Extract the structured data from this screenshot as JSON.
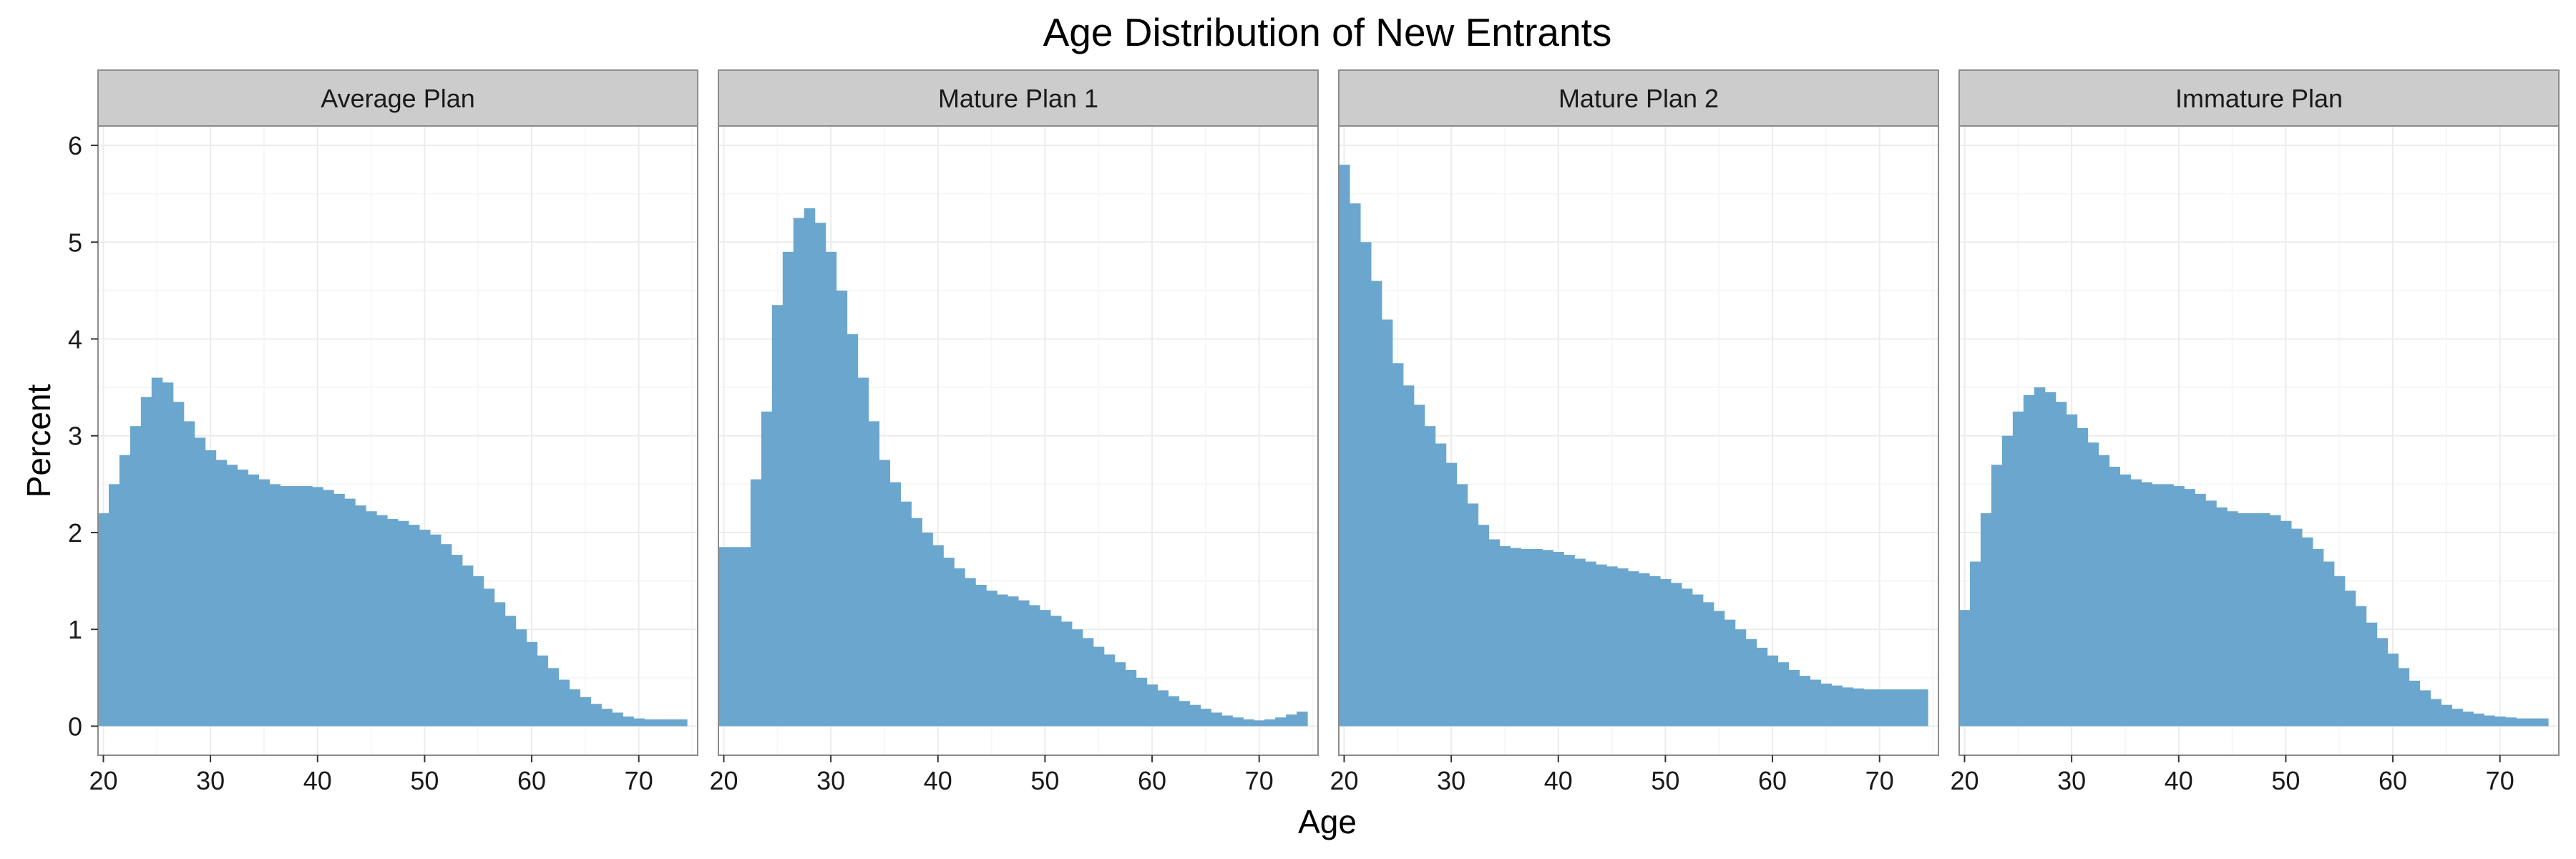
{
  "chart_data": {
    "type": "bar",
    "title": "Age Distribution of New Entrants",
    "xlabel": "Age",
    "ylabel": "Percent",
    "xlim": [
      19.5,
      75.5
    ],
    "ylim": [
      -0.3,
      6.2
    ],
    "x_ticks": [
      20,
      30,
      40,
      50,
      60,
      70
    ],
    "y_ticks": [
      0,
      1,
      2,
      3,
      4,
      5,
      6
    ],
    "grid": true,
    "bar_color": "#6BA6CE",
    "ages": [
      20,
      21,
      22,
      23,
      24,
      25,
      26,
      27,
      28,
      29,
      30,
      31,
      32,
      33,
      34,
      35,
      36,
      37,
      38,
      39,
      40,
      41,
      42,
      43,
      44,
      45,
      46,
      47,
      48,
      49,
      50,
      51,
      52,
      53,
      54,
      55,
      56,
      57,
      58,
      59,
      60,
      61,
      62,
      63,
      64,
      65,
      66,
      67,
      68,
      69,
      70,
      71,
      72,
      73,
      74
    ],
    "panels": [
      {
        "name": "Average Plan",
        "values": [
          2.2,
          2.5,
          2.8,
          3.1,
          3.4,
          3.6,
          3.55,
          3.35,
          3.15,
          2.98,
          2.85,
          2.75,
          2.7,
          2.65,
          2.6,
          2.55,
          2.5,
          2.48,
          2.48,
          2.48,
          2.47,
          2.44,
          2.4,
          2.35,
          2.28,
          2.22,
          2.18,
          2.14,
          2.12,
          2.08,
          2.03,
          1.98,
          1.88,
          1.77,
          1.66,
          1.55,
          1.42,
          1.28,
          1.14,
          1.0,
          0.87,
          0.73,
          0.6,
          0.48,
          0.38,
          0.3,
          0.23,
          0.18,
          0.14,
          0.1,
          0.08,
          0.07,
          0.07,
          0.07,
          0.07
        ]
      },
      {
        "name": "Mature Plan 1",
        "values": [
          1.85,
          1.85,
          1.85,
          2.55,
          3.25,
          4.35,
          4.9,
          5.25,
          5.35,
          5.2,
          4.9,
          4.5,
          4.05,
          3.6,
          3.15,
          2.75,
          2.52,
          2.32,
          2.15,
          2.0,
          1.87,
          1.74,
          1.63,
          1.53,
          1.46,
          1.4,
          1.36,
          1.34,
          1.3,
          1.25,
          1.2,
          1.14,
          1.08,
          1.0,
          0.91,
          0.82,
          0.74,
          0.66,
          0.58,
          0.5,
          0.43,
          0.37,
          0.31,
          0.26,
          0.22,
          0.18,
          0.14,
          0.11,
          0.09,
          0.07,
          0.06,
          0.07,
          0.09,
          0.12,
          0.15
        ]
      },
      {
        "name": "Mature Plan 2",
        "values": [
          5.8,
          5.4,
          5.0,
          4.6,
          4.2,
          3.75,
          3.52,
          3.32,
          3.1,
          2.92,
          2.72,
          2.5,
          2.3,
          2.08,
          1.93,
          1.86,
          1.84,
          1.83,
          1.83,
          1.82,
          1.8,
          1.77,
          1.73,
          1.7,
          1.67,
          1.65,
          1.63,
          1.6,
          1.58,
          1.55,
          1.52,
          1.48,
          1.42,
          1.36,
          1.28,
          1.19,
          1.1,
          1.0,
          0.9,
          0.81,
          0.73,
          0.66,
          0.58,
          0.52,
          0.48,
          0.44,
          0.42,
          0.4,
          0.39,
          0.38,
          0.38,
          0.38,
          0.38,
          0.38,
          0.38
        ]
      },
      {
        "name": "Immature Plan",
        "values": [
          1.2,
          1.7,
          2.2,
          2.7,
          3.0,
          3.25,
          3.42,
          3.5,
          3.45,
          3.35,
          3.22,
          3.08,
          2.93,
          2.8,
          2.68,
          2.6,
          2.55,
          2.52,
          2.5,
          2.5,
          2.48,
          2.45,
          2.4,
          2.33,
          2.26,
          2.22,
          2.2,
          2.2,
          2.2,
          2.18,
          2.12,
          2.04,
          1.95,
          1.83,
          1.7,
          1.55,
          1.4,
          1.24,
          1.07,
          0.91,
          0.75,
          0.6,
          0.47,
          0.37,
          0.28,
          0.22,
          0.18,
          0.15,
          0.13,
          0.11,
          0.1,
          0.09,
          0.08,
          0.08,
          0.08
        ]
      }
    ]
  }
}
